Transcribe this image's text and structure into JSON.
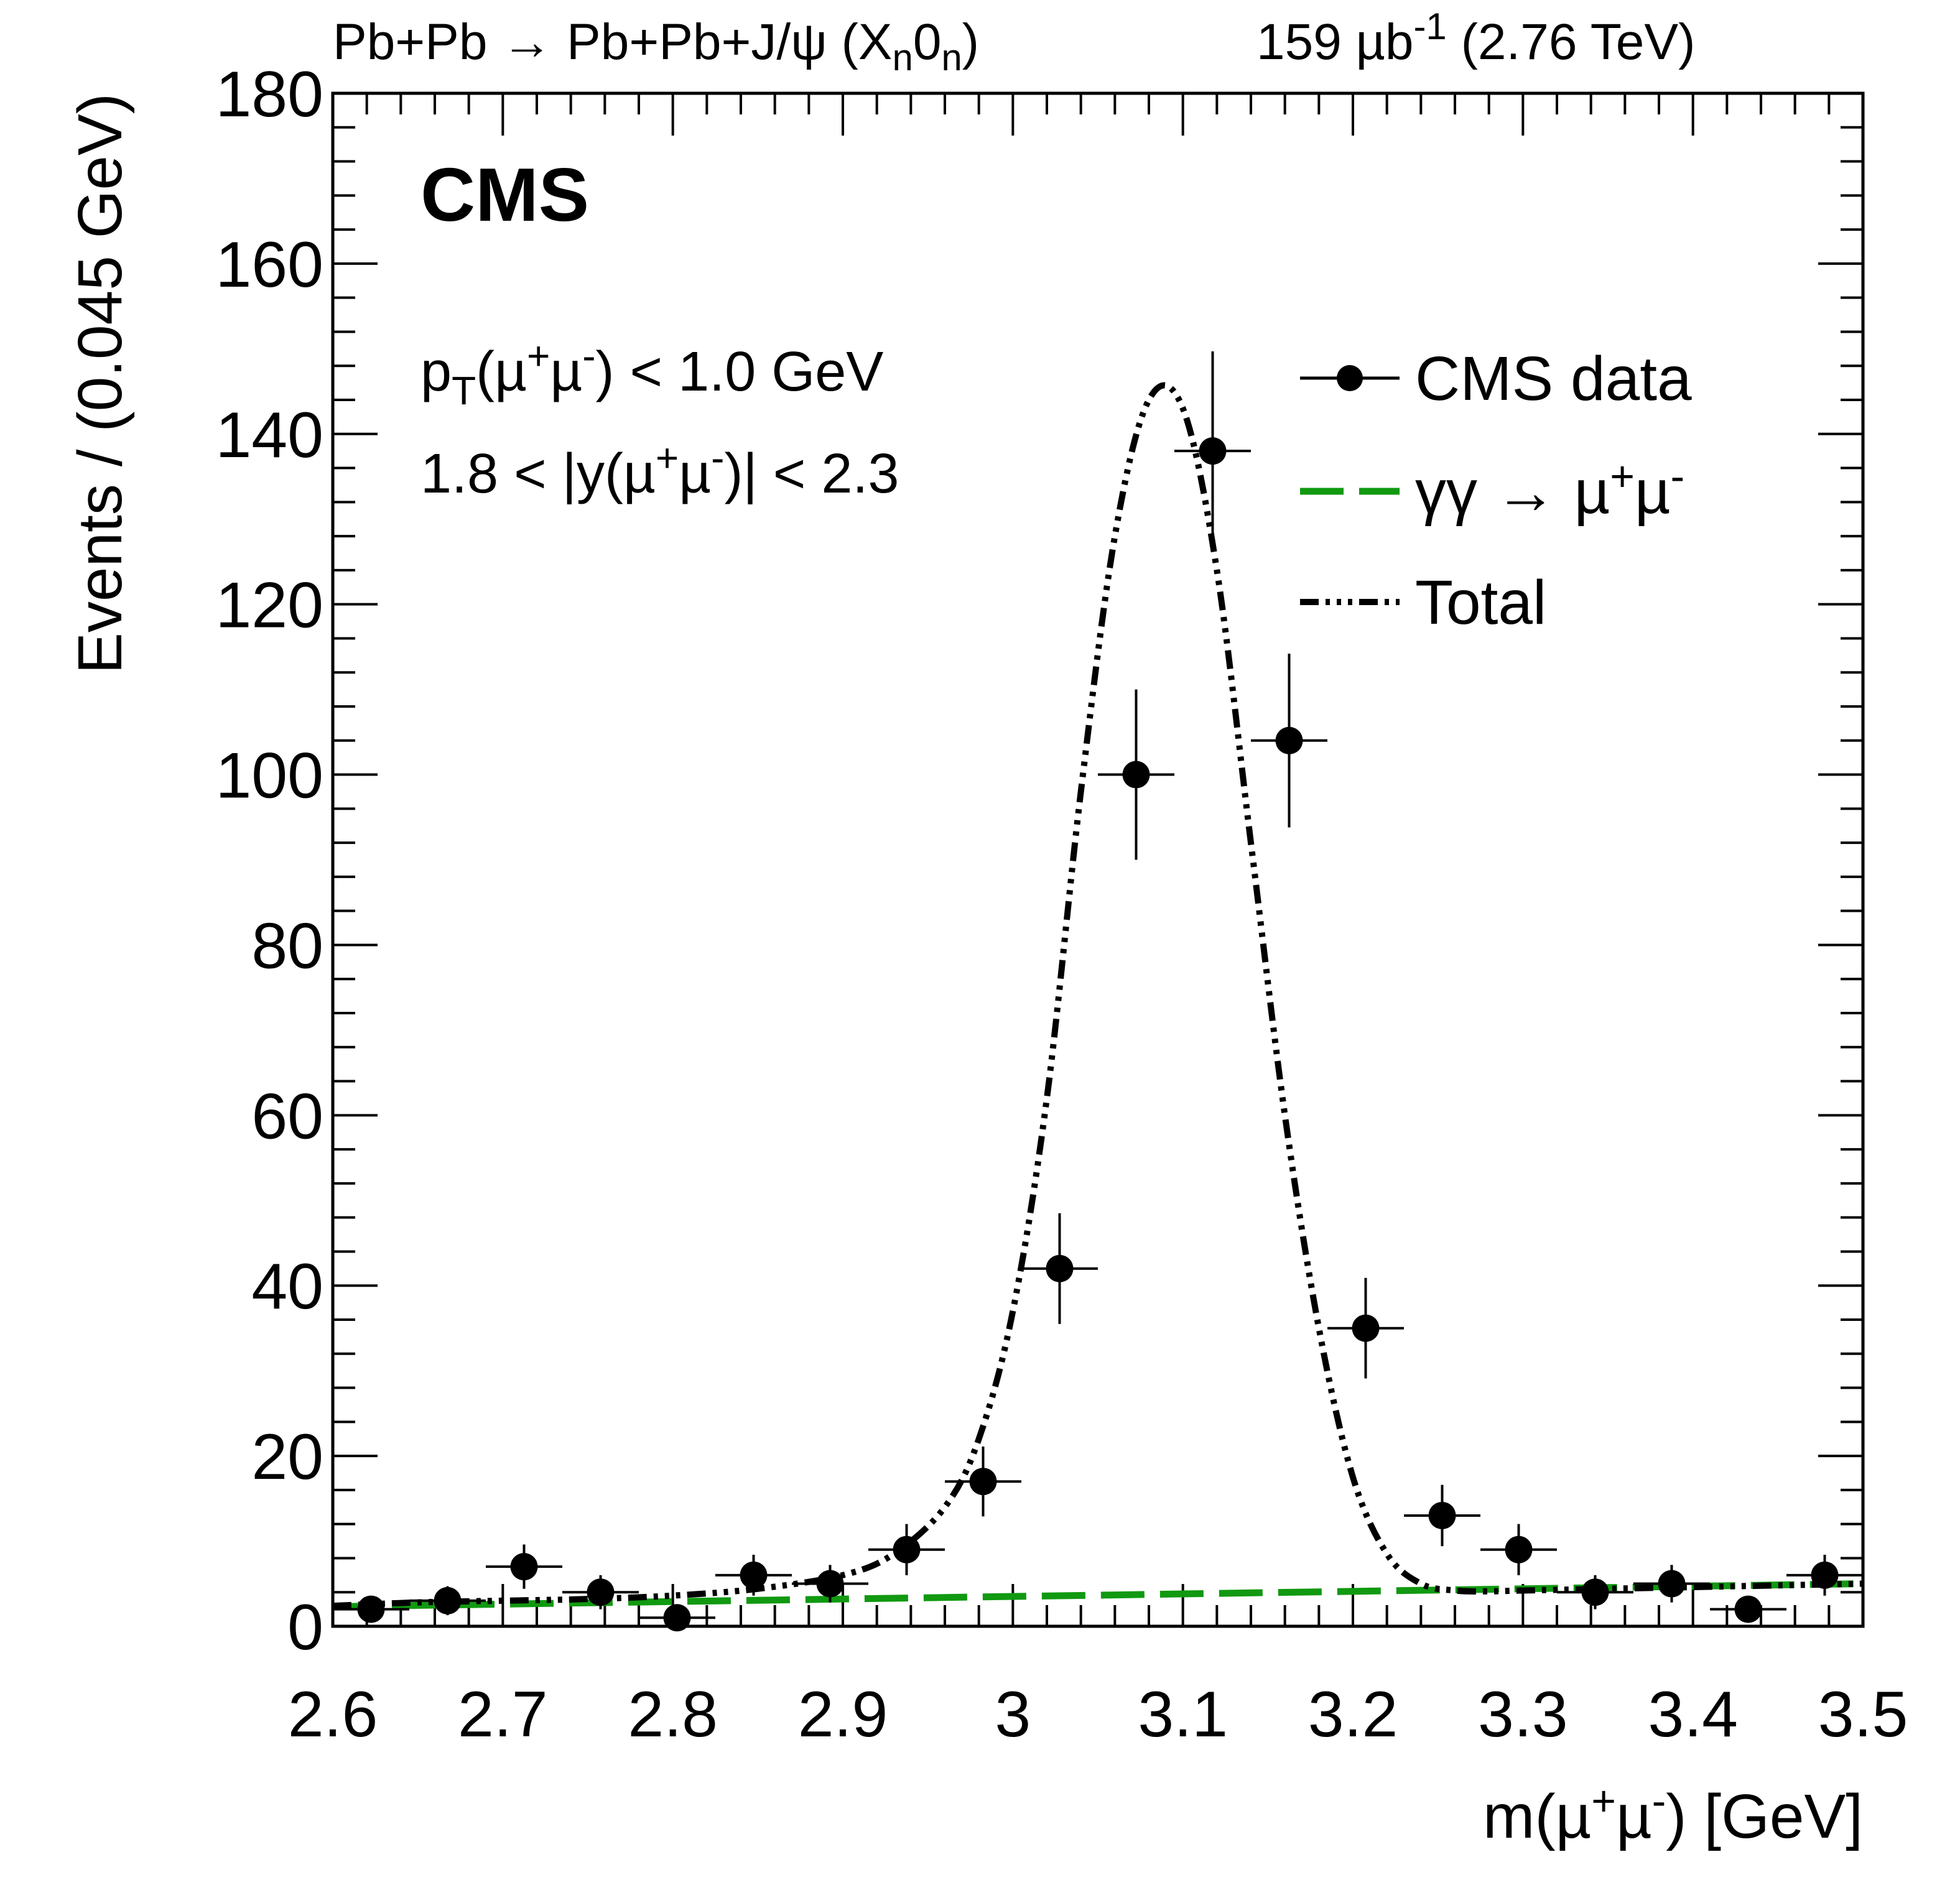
{
  "chart_data": {
    "type": "scatter",
    "title_left": "Pb+Pb → Pb+Pb+J/ψ (X",
    "title_left_sub1": "n",
    "title_left_mid": "0",
    "title_left_sub2": "n",
    "title_left_end": ")",
    "title_right_pre": "159 µb",
    "title_right_sup": "-1",
    "title_right_post": " (2.76 TeV)",
    "experiment": "CMS",
    "cut_pt": {
      "p": "p",
      "sub": "T",
      "a": "(µ",
      "sup1": "+",
      "b": "µ",
      "sup2": "-",
      "c": ") < 1.0 GeV"
    },
    "cut_y": {
      "a": "1.8 < |y(µ",
      "sup1": "+",
      "b": "µ",
      "sup2": "-",
      "c": ")| < 2.3"
    },
    "xlabel": {
      "a": "m(µ",
      "sup1": "+",
      "b": "µ",
      "sup2": "-",
      "c": ") [GeV]"
    },
    "ylabel": "Events / (0.045 GeV)",
    "xlim": [
      2.6,
      3.5
    ],
    "ylim": [
      0,
      180
    ],
    "xticks": [
      "2.6",
      "2.7",
      "2.8",
      "2.9",
      "3",
      "3.1",
      "3.2",
      "3.3",
      "3.4",
      "3.5"
    ],
    "yticks": [
      "0",
      "20",
      "40",
      "60",
      "80",
      "100",
      "120",
      "140",
      "160",
      "180"
    ],
    "legend": {
      "position": "top-right",
      "data_label": "CMS data",
      "bkg_label": {
        "a": "γγ → µ",
        "sup1": "+",
        "b": "µ",
        "sup2": "-"
      },
      "total_label": "Total"
    },
    "colors": {
      "data": "#000000",
      "background": "#119911",
      "total": "#000000"
    },
    "bin_width": 0.045,
    "series": [
      {
        "name": "CMS data",
        "x": [
          2.6225,
          2.6675,
          2.7125,
          2.7575,
          2.8025,
          2.8475,
          2.8925,
          2.9375,
          2.9825,
          3.0275,
          3.0725,
          3.1175,
          3.1625,
          3.2075,
          3.2525,
          3.2975,
          3.3425,
          3.3875,
          3.4325,
          3.4775
        ],
        "y": [
          2,
          3,
          7,
          4,
          1,
          6,
          5,
          9,
          17,
          42,
          100,
          138,
          104,
          35,
          13,
          9,
          4,
          5,
          2,
          6
        ],
        "y_err": [
          1.4,
          1.7,
          2.6,
          2.0,
          1.0,
          2.4,
          2.2,
          3.0,
          4.1,
          6.5,
          10.0,
          11.7,
          10.2,
          5.9,
          3.6,
          3.0,
          2.0,
          2.2,
          1.4,
          2.4
        ]
      },
      {
        "name": "γγ → µ+µ-",
        "x": [
          2.6,
          3.5
        ],
        "y": [
          2.3,
          5.0
        ]
      },
      {
        "name": "Total",
        "x": [
          2.6,
          2.65,
          2.7,
          2.75,
          2.8,
          2.85,
          2.9,
          2.93,
          2.96,
          2.98,
          3.0,
          3.02,
          3.04,
          3.06,
          3.08,
          3.1,
          3.12,
          3.14,
          3.16,
          3.18,
          3.2,
          3.22,
          3.24,
          3.26,
          3.28,
          3.3,
          3.35,
          3.4,
          3.45,
          3.5
        ],
        "y": [
          2.4,
          2.8,
          3.0,
          3.2,
          3.6,
          4.4,
          6.0,
          8.5,
          14.0,
          22.0,
          37.0,
          62.0,
          98.0,
          128.0,
          144.0,
          143.0,
          124.0,
          92.0,
          60.0,
          35.0,
          17.5,
          8.5,
          5.0,
          4.2,
          4.1,
          4.2,
          4.4,
          4.6,
          4.8,
          5.0
        ]
      }
    ]
  }
}
